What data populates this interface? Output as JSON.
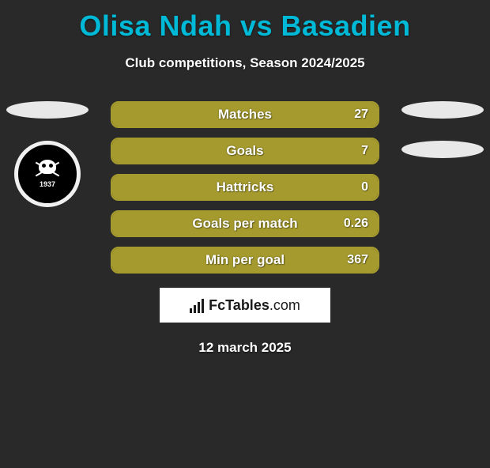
{
  "title": "Olisa Ndah vs Basadien",
  "title_color": "#00b9d6",
  "subtitle": "Club competitions, Season 2024/2025",
  "background_color": "#292929",
  "text_color": "#ffffff",
  "date": "12 march 2025",
  "brand": {
    "name": "FcTables",
    "suffix": ".com"
  },
  "left_badge": {
    "year": "1937",
    "border_color": "#f0f0f0",
    "bg_color": "#000000"
  },
  "ellipse_color": "#e8e8e8",
  "bars": {
    "border_color": "#a59a2e",
    "fill_color": "#a59a2e",
    "empty_color": "transparent",
    "items": [
      {
        "label": "Matches",
        "value": "27",
        "fill_pct": 100
      },
      {
        "label": "Goals",
        "value": "7",
        "fill_pct": 100
      },
      {
        "label": "Hattricks",
        "value": "0",
        "fill_pct": 100
      },
      {
        "label": "Goals per match",
        "value": "0.26",
        "fill_pct": 100
      },
      {
        "label": "Min per goal",
        "value": "367",
        "fill_pct": 100
      }
    ]
  }
}
